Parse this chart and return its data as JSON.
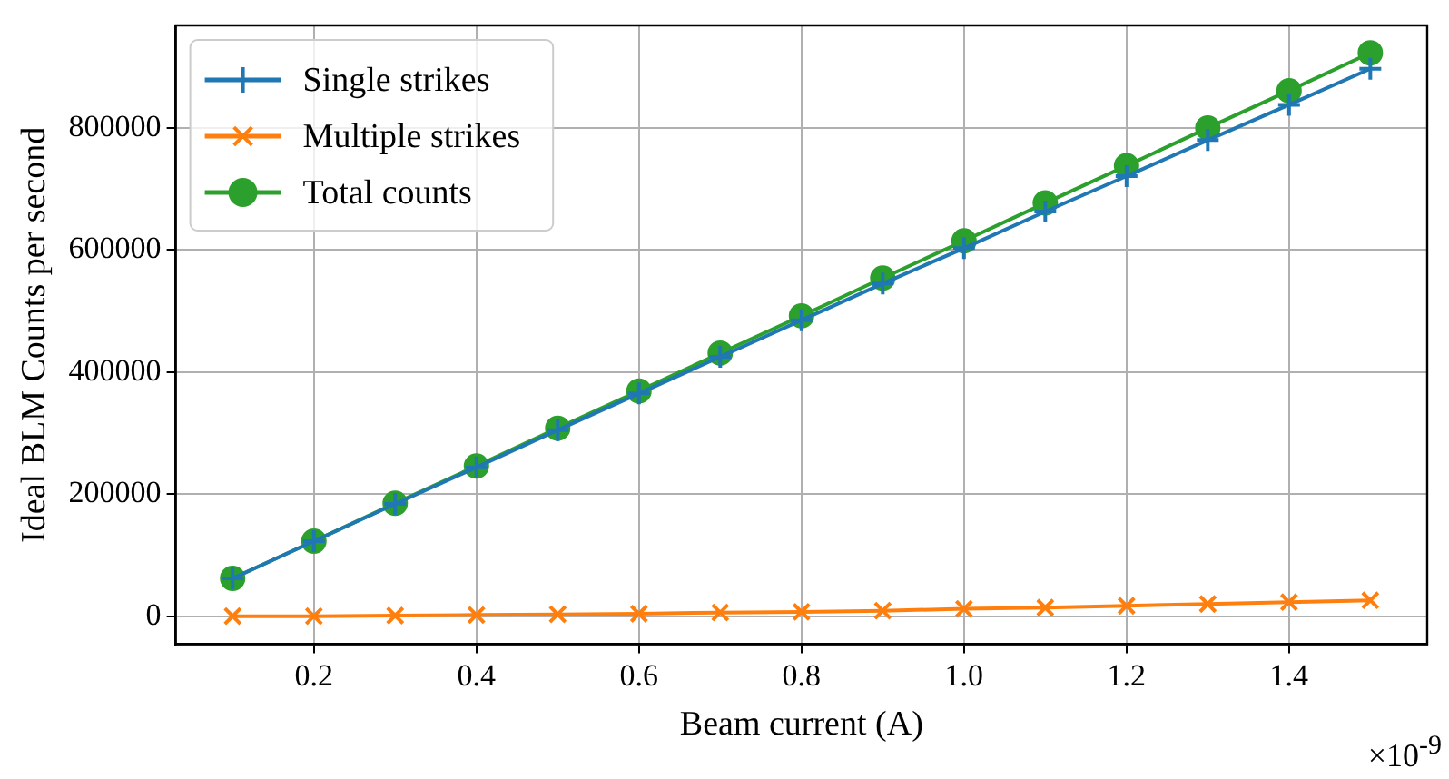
{
  "chart_data": {
    "type": "line",
    "xlabel": "Beam current (A)",
    "ylabel": "Ideal BLM Counts per second",
    "x": [
      0.1,
      0.2,
      0.3,
      0.4,
      0.5,
      0.6,
      0.7,
      0.8,
      0.9,
      1.0,
      1.1,
      1.2,
      1.3,
      1.4,
      1.5
    ],
    "series": [
      {
        "name": "Single strikes",
        "color": "#1f77b4",
        "marker": "cross",
        "values": [
          62000,
          123000,
          184000,
          244000,
          305000,
          365000,
          425000,
          485000,
          545000,
          603000,
          663000,
          721000,
          780000,
          838000,
          897000
        ]
      },
      {
        "name": "Multiple strikes",
        "color": "#ff7f0e",
        "marker": "x",
        "values": [
          0,
          0,
          1000,
          2000,
          3000,
          4000,
          6000,
          7000,
          9000,
          12000,
          14000,
          17000,
          20000,
          23000,
          26000
        ]
      },
      {
        "name": "Total counts",
        "color": "#2ca02c",
        "marker": "circle",
        "values": [
          62000,
          123000,
          185000,
          246000,
          308000,
          369000,
          431000,
          492000,
          554000,
          615000,
          677000,
          738000,
          800000,
          861000,
          923000
        ]
      }
    ],
    "xlim": [
      0.03,
      1.57
    ],
    "xticks": [
      0.2,
      0.4,
      0.6,
      0.8,
      {
        "value": 1.0,
        "label": "1.0"
      },
      1.2,
      1.4
    ],
    "ylim": [
      -46000,
      968000
    ],
    "yticks": [
      0,
      200000,
      400000,
      600000,
      800000
    ],
    "annotations": [
      "×10$^{-9}$"
    ],
    "grid": true,
    "legend": "top left"
  }
}
